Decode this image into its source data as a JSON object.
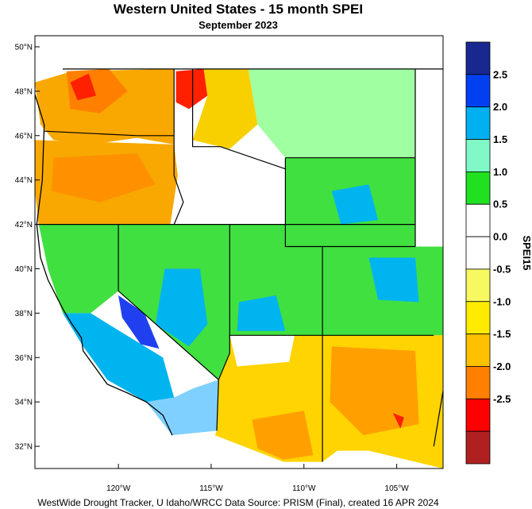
{
  "title": "Western United States - 15 month SPEI",
  "subtitle": "September 2023",
  "footer": "WestWide Drought Tracker, U Idaho/WRCC Data Source: PRISM (Final), created 16 APR 2024",
  "map": {
    "lon_range": [
      -124.5,
      -102.5
    ],
    "lat_range": [
      31.0,
      50.5
    ],
    "lat_ticks": [
      {
        "value": 32,
        "label": "32°N"
      },
      {
        "value": 34,
        "label": "34°N"
      },
      {
        "value": 36,
        "label": "36°N"
      },
      {
        "value": 38,
        "label": "38°N"
      },
      {
        "value": 40,
        "label": "40°N"
      },
      {
        "value": 42,
        "label": "42°N"
      },
      {
        "value": 44,
        "label": "44°N"
      },
      {
        "value": 46,
        "label": "46°N"
      },
      {
        "value": 48,
        "label": "48°N"
      },
      {
        "value": 50,
        "label": "50°N"
      }
    ],
    "lon_ticks": [
      {
        "value": -120,
        "label": "120°W"
      },
      {
        "value": -115,
        "label": "115°W"
      },
      {
        "value": -110,
        "label": "110°W"
      },
      {
        "value": -105,
        "label": "105°W"
      }
    ],
    "colors": {
      "ocean": "#ffffff",
      "border": "#000000"
    },
    "regions": [
      {
        "name": "washington-oregon-west",
        "color": "#f8a800",
        "points": [
          [
            -124.5,
            48.4
          ],
          [
            -122.5,
            48.9
          ],
          [
            -117.0,
            49.0
          ],
          [
            -117.0,
            45.6
          ],
          [
            -119.0,
            45.9
          ],
          [
            -121.5,
            45.6
          ],
          [
            -123.5,
            45.8
          ],
          [
            -124.2,
            46.5
          ]
        ]
      },
      {
        "name": "washington-north-cascades",
        "color": "#ff8000",
        "points": [
          [
            -122.8,
            48.9
          ],
          [
            -120.5,
            49.0
          ],
          [
            -119.5,
            48.0
          ],
          [
            -121.0,
            47.0
          ],
          [
            -122.6,
            47.2
          ]
        ]
      },
      {
        "name": "washington-seattle-red",
        "color": "#ff2000",
        "points": [
          [
            -122.6,
            48.4
          ],
          [
            -121.6,
            48.8
          ],
          [
            -121.2,
            47.8
          ],
          [
            -122.2,
            47.6
          ]
        ]
      },
      {
        "name": "idaho-panhandle-red",
        "color": "#ff2000",
        "points": [
          [
            -116.9,
            48.9
          ],
          [
            -115.4,
            49.0
          ],
          [
            -115.2,
            47.8
          ],
          [
            -116.2,
            47.2
          ],
          [
            -116.9,
            47.5
          ]
        ]
      },
      {
        "name": "oregon-east",
        "color": "#f8a800",
        "points": [
          [
            -124.5,
            45.8
          ],
          [
            -117.0,
            45.6
          ],
          [
            -116.8,
            44.2
          ],
          [
            -117.2,
            42.0
          ],
          [
            -124.3,
            42.0
          ],
          [
            -124.5,
            43.5
          ]
        ]
      },
      {
        "name": "oregon-central-orange",
        "color": "#ff9000",
        "points": [
          [
            -123.5,
            45.0
          ],
          [
            -119.0,
            45.2
          ],
          [
            -118.0,
            43.8
          ],
          [
            -121.0,
            43.0
          ],
          [
            -123.6,
            43.5
          ]
        ]
      },
      {
        "name": "montana-west",
        "color": "#f8d000",
        "points": [
          [
            -115.4,
            49.0
          ],
          [
            -113.0,
            49.0
          ],
          [
            -112.5,
            46.5
          ],
          [
            -114.0,
            45.4
          ],
          [
            -116.0,
            45.8
          ],
          [
            -115.2,
            47.8
          ]
        ]
      },
      {
        "name": "montana-east",
        "color": "#a0ffa0",
        "points": [
          [
            -113.0,
            49.0
          ],
          [
            -104.0,
            49.0
          ],
          [
            -104.0,
            45.0
          ],
          [
            -111.0,
            45.0
          ],
          [
            -112.5,
            46.5
          ]
        ]
      },
      {
        "name": "idaho-south",
        "color": "#ffffff",
        "points": [
          [
            -117.0,
            45.6
          ],
          [
            -114.0,
            45.4
          ],
          [
            -111.0,
            44.5
          ],
          [
            -111.0,
            42.0
          ],
          [
            -117.2,
            42.0
          ],
          [
            -116.8,
            44.2
          ]
        ]
      },
      {
        "name": "wyoming",
        "color": "#40e040",
        "points": [
          [
            -111.0,
            45.0
          ],
          [
            -104.0,
            45.0
          ],
          [
            -104.0,
            41.0
          ],
          [
            -111.0,
            41.0
          ]
        ]
      },
      {
        "name": "wyoming-blue",
        "color": "#00b4f0",
        "points": [
          [
            -108.5,
            43.5
          ],
          [
            -106.5,
            43.8
          ],
          [
            -106.0,
            42.2
          ],
          [
            -108.0,
            42.0
          ]
        ]
      },
      {
        "name": "northern-california",
        "color": "#40e040",
        "points": [
          [
            -124.3,
            42.0
          ],
          [
            -120.0,
            42.0
          ],
          [
            -120.0,
            39.0
          ],
          [
            -121.5,
            38.0
          ],
          [
            -123.0,
            38.0
          ],
          [
            -123.8,
            40.0
          ]
        ]
      },
      {
        "name": "nevada",
        "color": "#40e040",
        "points": [
          [
            -120.0,
            42.0
          ],
          [
            -114.0,
            42.0
          ],
          [
            -114.0,
            36.2
          ],
          [
            -114.6,
            35.0
          ],
          [
            -120.0,
            39.0
          ]
        ]
      },
      {
        "name": "nevada-blue",
        "color": "#00b4f0",
        "points": [
          [
            -117.5,
            40.0
          ],
          [
            -115.6,
            40.0
          ],
          [
            -115.2,
            37.5
          ],
          [
            -116.2,
            36.5
          ],
          [
            -118.0,
            37.5
          ]
        ]
      },
      {
        "name": "central-california-blue",
        "color": "#00b4f0",
        "points": [
          [
            -123.0,
            38.0
          ],
          [
            -121.5,
            38.0
          ],
          [
            -117.6,
            36.0
          ],
          [
            -117.0,
            34.2
          ],
          [
            -118.5,
            34.0
          ],
          [
            -120.6,
            35.0
          ],
          [
            -121.9,
            36.5
          ]
        ]
      },
      {
        "name": "sierra-darkblue",
        "color": "#2040f0",
        "points": [
          [
            -120.0,
            38.8
          ],
          [
            -118.6,
            38.0
          ],
          [
            -117.8,
            36.4
          ],
          [
            -118.8,
            36.6
          ],
          [
            -119.8,
            37.8
          ]
        ]
      },
      {
        "name": "southern-california",
        "color": "#80d0ff",
        "points": [
          [
            -118.5,
            34.0
          ],
          [
            -117.0,
            34.2
          ],
          [
            -116.0,
            34.6
          ],
          [
            -114.6,
            35.0
          ],
          [
            -114.7,
            32.7
          ],
          [
            -117.1,
            32.5
          ]
        ]
      },
      {
        "name": "utah",
        "color": "#40e040",
        "points": [
          [
            -114.0,
            42.0
          ],
          [
            -111.0,
            42.0
          ],
          [
            -111.0,
            41.0
          ],
          [
            -109.0,
            41.0
          ],
          [
            -109.0,
            37.0
          ],
          [
            -114.0,
            37.0
          ]
        ]
      },
      {
        "name": "utah-blue",
        "color": "#00b4f0",
        "points": [
          [
            -113.5,
            38.5
          ],
          [
            -111.5,
            38.8
          ],
          [
            -111.0,
            37.2
          ],
          [
            -113.6,
            37.2
          ]
        ]
      },
      {
        "name": "colorado",
        "color": "#40e040",
        "points": [
          [
            -109.0,
            41.0
          ],
          [
            -102.5,
            41.0
          ],
          [
            -102.5,
            37.0
          ],
          [
            -109.0,
            37.0
          ]
        ]
      },
      {
        "name": "colorado-blue",
        "color": "#00b4f0",
        "points": [
          [
            -106.5,
            40.5
          ],
          [
            -104.0,
            40.5
          ],
          [
            -103.8,
            38.5
          ],
          [
            -106.0,
            38.6
          ]
        ]
      },
      {
        "name": "arizona",
        "color": "#ffd400",
        "points": [
          [
            -114.6,
            35.0
          ],
          [
            -114.0,
            36.2
          ],
          [
            -114.0,
            37.0
          ],
          [
            -109.0,
            37.0
          ],
          [
            -109.0,
            31.3
          ],
          [
            -111.1,
            31.3
          ],
          [
            -114.8,
            32.5
          ],
          [
            -114.7,
            32.7
          ]
        ]
      },
      {
        "name": "arizona-north-white",
        "color": "#ffffff",
        "points": [
          [
            -114.0,
            37.0
          ],
          [
            -110.5,
            37.0
          ],
          [
            -110.8,
            35.8
          ],
          [
            -113.6,
            35.6
          ]
        ]
      },
      {
        "name": "arizona-south-orange",
        "color": "#ffa000",
        "points": [
          [
            -112.8,
            33.2
          ],
          [
            -110.0,
            33.6
          ],
          [
            -109.5,
            31.6
          ],
          [
            -111.1,
            31.4
          ],
          [
            -112.5,
            31.9
          ]
        ]
      },
      {
        "name": "new-mexico",
        "color": "#ffd400",
        "points": [
          [
            -109.0,
            37.0
          ],
          [
            -102.5,
            37.0
          ],
          [
            -102.5,
            31.0
          ],
          [
            -106.5,
            31.8
          ],
          [
            -108.2,
            31.8
          ],
          [
            -109.0,
            31.3
          ]
        ]
      },
      {
        "name": "new-mexico-orange",
        "color": "#ffa000",
        "points": [
          [
            -108.5,
            36.5
          ],
          [
            -104.0,
            36.3
          ],
          [
            -103.8,
            33.0
          ],
          [
            -106.8,
            32.5
          ],
          [
            -108.6,
            34.0
          ]
        ]
      },
      {
        "name": "new-mexico-red",
        "color": "#ff2000",
        "points": [
          [
            -105.2,
            33.5
          ],
          [
            -104.6,
            33.3
          ],
          [
            -104.8,
            32.8
          ]
        ]
      }
    ],
    "state_lines": [
      [
        [
          -124.4,
          42.0
        ],
        [
          -117.0,
          42.0
        ],
        [
          -104.0,
          42.0
        ]
      ],
      [
        [
          -120.0,
          42.0
        ],
        [
          -120.0,
          39.0
        ],
        [
          -114.6,
          35.0
        ]
      ],
      [
        [
          -117.0,
          49.0
        ],
        [
          -117.0,
          44.2
        ],
        [
          -116.5,
          43.0
        ],
        [
          -117.0,
          42.0
        ]
      ],
      [
        [
          -124.0,
          46.2
        ],
        [
          -119.0,
          46.0
        ],
        [
          -117.0,
          46.0
        ]
      ],
      [
        [
          -114.0,
          42.0
        ],
        [
          -114.0,
          37.0
        ],
        [
          -109.0,
          37.0
        ],
        [
          -103.0,
          37.0
        ]
      ],
      [
        [
          -111.0,
          45.0
        ],
        [
          -111.0,
          41.0
        ],
        [
          -104.0,
          41.0
        ]
      ],
      [
        [
          -111.0,
          45.0
        ],
        [
          -104.0,
          45.0
        ]
      ],
      [
        [
          -109.0,
          41.0
        ],
        [
          -109.0,
          31.3
        ]
      ],
      [
        [
          -104.0,
          49.0
        ],
        [
          -104.0,
          41.0
        ]
      ],
      [
        [
          -102.0,
          37.0
        ],
        [
          -103.0,
          32.0
        ]
      ],
      [
        [
          -116.0,
          49.0
        ],
        [
          -116.0,
          45.5
        ],
        [
          -114.5,
          45.5
        ],
        [
          -111.0,
          44.5
        ]
      ],
      [
        [
          -114.0,
          37.0
        ],
        [
          -114.0,
          36.2
        ],
        [
          -114.6,
          35.0
        ],
        [
          -114.7,
          32.7
        ]
      ]
    ],
    "coast": [
      [
        -124.7,
        48.4
      ],
      [
        -124.0,
        46.5
      ],
      [
        -124.1,
        44.0
      ],
      [
        -124.4,
        42.0
      ],
      [
        -124.2,
        40.5
      ],
      [
        -123.8,
        39.5
      ],
      [
        -123.0,
        38.2
      ],
      [
        -122.5,
        37.5
      ],
      [
        -122.0,
        36.9
      ],
      [
        -121.9,
        36.3
      ],
      [
        -120.6,
        34.8
      ],
      [
        -119.5,
        34.4
      ],
      [
        -118.5,
        34.0
      ],
      [
        -117.6,
        33.4
      ],
      [
        -117.1,
        32.5
      ]
    ],
    "colorbar": {
      "colors": [
        "#b02020",
        "#ff0000",
        "#ff8000",
        "#ffc000",
        "#ffeb00",
        "#f8f860",
        "#ffffff",
        "#ffffff",
        "#20e020",
        "#80f8c8",
        "#00b0f0",
        "#0040f0",
        "#182890"
      ],
      "labels": [
        "-2.5",
        "-2.0",
        "-1.5",
        "-1.0",
        "-0.5",
        "0.0",
        "0.5",
        "1.0",
        "1.5",
        "2.0",
        "2.5"
      ],
      "title": "SPEI15"
    }
  }
}
